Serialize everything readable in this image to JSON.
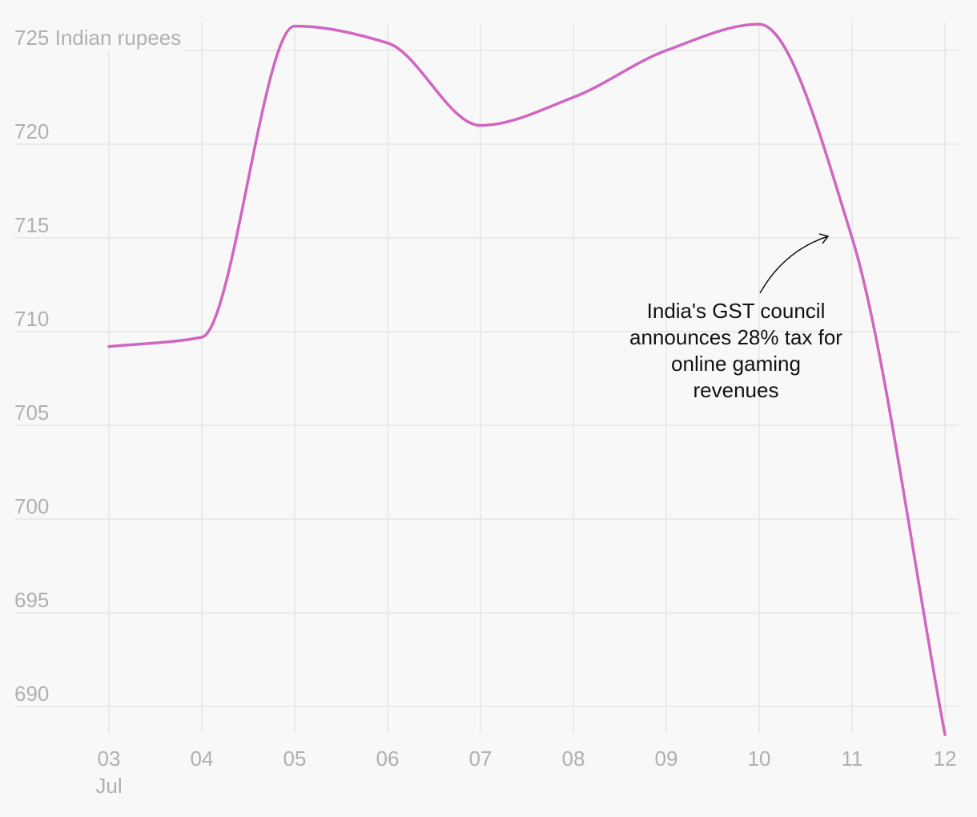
{
  "chart_data": {
    "type": "line",
    "title": "",
    "xlabel": "",
    "ylabel": "Indian rupees",
    "unit_label": "Indian rupees",
    "categories": [
      "03",
      "04",
      "05",
      "06",
      "07",
      "08",
      "09",
      "10",
      "11",
      "12"
    ],
    "x_month_label": "Jul",
    "series": [
      {
        "name": "",
        "color": "#d066c1",
        "values": [
          709.2,
          709.7,
          726.3,
          725.4,
          721.0,
          722.5,
          725.0,
          726.4,
          715.0,
          688.5
        ]
      }
    ],
    "yticks": [
      690,
      695,
      700,
      705,
      710,
      715,
      720,
      725
    ],
    "ylim": [
      687.5,
      726.5
    ],
    "grid": true,
    "annotation": {
      "lines": [
        "India's GST council",
        "announces 28% tax for",
        "online gaming",
        "revenues"
      ],
      "target_category": "11",
      "target_value": 715
    }
  }
}
